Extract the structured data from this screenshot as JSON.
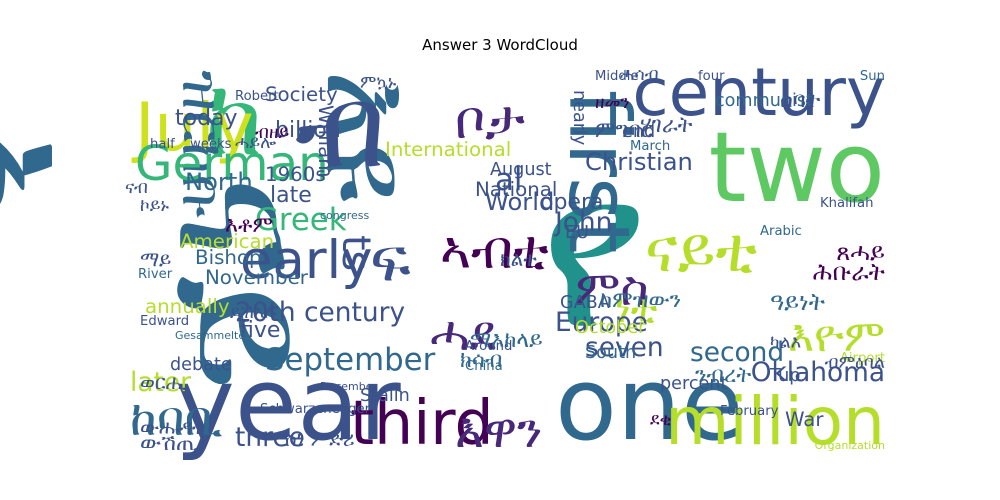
{
  "chart_data": {
    "type": "wordcloud",
    "title": "Answer 3 WordCloud",
    "words": [
      {
        "text": "የ",
        "weight": 100,
        "color": "#21918c",
        "rot": 0
      },
      {
        "text": "ኣ",
        "weight": 88,
        "color": "#31688e",
        "rot": 90
      },
      {
        "text": "ናይ",
        "weight": 86,
        "color": "#31688e",
        "rot": 90
      },
      {
        "text": "እዩ",
        "weight": 55,
        "color": "#31688e",
        "rot": 90
      },
      {
        "text": "ብ",
        "weight": 52,
        "color": "#3b528b",
        "rot": 0
      },
      {
        "text": "ከ",
        "weight": 48,
        "color": "#35b779",
        "rot": 0
      },
      {
        "text": "year",
        "weight": 46,
        "color": "#3b528b",
        "rot": 0
      },
      {
        "text": "one",
        "weight": 46,
        "color": "#31688e",
        "rot": 0
      },
      {
        "text": "two",
        "weight": 44,
        "color": "#5ec962",
        "rot": 0
      },
      {
        "text": "first",
        "weight": 38,
        "color": "#31688e",
        "rot": 90
      },
      {
        "text": "century",
        "weight": 30,
        "color": "#3b528b",
        "rot": 0
      },
      {
        "text": "million",
        "weight": 30,
        "color": "#b5de2b",
        "rot": 0
      },
      {
        "text": "July",
        "weight": 30,
        "color": "#cde11d",
        "rot": 0
      },
      {
        "text": "third",
        "weight": 28,
        "color": "#440154",
        "rot": 0
      },
      {
        "text": "ፍ",
        "weight": 28,
        "color": "#3b528b",
        "rot": 0
      },
      {
        "text": "ናይቲ",
        "weight": 28,
        "color": "#b5de2b",
        "rot": 0
      },
      {
        "text": "ዝርከቡ",
        "weight": 26,
        "color": "#31688e",
        "rot": 90
      },
      {
        "text": "early",
        "weight": 24,
        "color": "#3b528b",
        "rot": 0
      },
      {
        "text": "ቦታ",
        "weight": 24,
        "color": "#482878",
        "rot": 0
      },
      {
        "text": "ኣብቲ",
        "weight": 24,
        "color": "#440154",
        "rot": 0
      },
      {
        "text": "German",
        "weight": 22,
        "color": "#35b779",
        "rot": 0
      },
      {
        "text": "ምስ",
        "weight": 22,
        "color": "#482878",
        "rot": 0
      },
      {
        "text": "ሓደ",
        "weight": 22,
        "color": "#482878",
        "rot": 0
      },
      {
        "text": "እዋን",
        "weight": 22,
        "color": "#482878",
        "rot": 0
      },
      {
        "text": "ከባቢ",
        "weight": 22,
        "color": "#31688e",
        "rot": 0
      },
      {
        "text": "እዮም",
        "weight": 20,
        "color": "#b5de2b",
        "rot": 0
      },
      {
        "text": "ነቲ",
        "weight": 18,
        "color": "#b5de2b",
        "rot": 0
      },
      {
        "text": "Greek",
        "weight": 14,
        "color": "#35b779",
        "rot": 0
      },
      {
        "text": "September",
        "weight": 14,
        "color": "#31688e",
        "rot": 0
      },
      {
        "text": "Oklahoma",
        "weight": 12,
        "color": "#3b528b",
        "rot": 0
      },
      {
        "text": "20th century",
        "weight": 12,
        "color": "#3b528b",
        "rot": 0
      },
      {
        "text": "John",
        "weight": 12,
        "color": "#3b528b",
        "rot": 0
      },
      {
        "text": "Europe",
        "weight": 12,
        "color": "#3b528b",
        "rot": 0
      },
      {
        "text": "seven",
        "weight": 12,
        "color": "#3b528b",
        "rot": 0
      },
      {
        "text": "second",
        "weight": 12,
        "color": "#31688e",
        "rot": 0
      },
      {
        "text": "three",
        "weight": 12,
        "color": "#3b528b",
        "rot": 0
      },
      {
        "text": "later",
        "weight": 12,
        "color": "#b5de2b",
        "rot": 0
      },
      {
        "text": "Christian",
        "weight": 11,
        "color": "#3b528b",
        "rot": 0
      },
      {
        "text": "World",
        "weight": 11,
        "color": "#3b528b",
        "rot": 0
      },
      {
        "text": "North",
        "weight": 11,
        "color": "#31688e",
        "rot": 0
      },
      {
        "text": "al",
        "weight": 14,
        "color": "#3b528b",
        "rot": 0
      },
      {
        "text": "ts",
        "weight": 18,
        "color": "#3b528b",
        "rot": 90
      },
      {
        "text": "today",
        "weight": 10,
        "color": "#3b528b",
        "rot": 0
      },
      {
        "text": "billion",
        "weight": 10,
        "color": "#3b528b",
        "rot": 0
      },
      {
        "text": "Society",
        "weight": 9,
        "color": "#3b528b",
        "rot": 0
      },
      {
        "text": "William",
        "weight": 9,
        "color": "#3b528b",
        "rot": 90
      },
      {
        "text": "International",
        "weight": 9,
        "color": "#b5de2b",
        "rot": 0
      },
      {
        "text": "National",
        "weight": 9,
        "color": "#3b528b",
        "rot": 0
      },
      {
        "text": "August",
        "weight": 8,
        "color": "#3b528b",
        "rot": 0
      },
      {
        "text": "1960s",
        "weight": 9,
        "color": "#3b528b",
        "rot": 0
      },
      {
        "text": "late",
        "weight": 10,
        "color": "#3b528b",
        "rot": 0
      },
      {
        "text": "American",
        "weight": 9,
        "color": "#b5de2b",
        "rot": 0
      },
      {
        "text": "Bishop",
        "weight": 9,
        "color": "#31688e",
        "rot": 0
      },
      {
        "text": "November",
        "weight": 9,
        "color": "#31688e",
        "rot": 0
      },
      {
        "text": "annually",
        "weight": 9,
        "color": "#b5de2b",
        "rot": 0
      },
      {
        "text": "five",
        "weight": 10,
        "color": "#3b528b",
        "rot": 0
      },
      {
        "text": "debate",
        "weight": 8,
        "color": "#3b528b",
        "rot": 0
      },
      {
        "text": "Stalin",
        "weight": 8,
        "color": "#3b528b",
        "rot": 0
      },
      {
        "text": "opera",
        "weight": 10,
        "color": "#3b528b",
        "rot": 0
      },
      {
        "text": "EU",
        "weight": 8,
        "color": "#3b528b",
        "rot": 0
      },
      {
        "text": "GABA",
        "weight": 8,
        "color": "#3b528b",
        "rot": 0
      },
      {
        "text": "October",
        "weight": 8,
        "color": "#b5de2b",
        "rot": 0
      },
      {
        "text": "South",
        "weight": 8,
        "color": "#31688e",
        "rot": 0
      },
      {
        "text": "percent",
        "weight": 8,
        "color": "#3b528b",
        "rot": 0
      },
      {
        "text": "Tup",
        "weight": 8,
        "color": "#3b528b",
        "rot": 0
      },
      {
        "text": "War",
        "weight": 9,
        "color": "#3b528b",
        "rot": 0
      },
      {
        "text": "communist",
        "weight": 8,
        "color": "#31688e",
        "rot": 0
      },
      {
        "text": "end",
        "weight": 8,
        "color": "#3b528b",
        "rot": 0
      },
      {
        "text": "nearly",
        "weight": 8,
        "color": "#3b528b",
        "rot": 90
      },
      {
        "text": "Middle",
        "weight": 6,
        "color": "#3b528b",
        "rot": 0
      },
      {
        "text": "four",
        "weight": 6,
        "color": "#3b528b",
        "rot": 0
      },
      {
        "text": "Sun",
        "weight": 6,
        "color": "#31688e",
        "rot": 0
      },
      {
        "text": "March",
        "weight": 6,
        "color": "#31688e",
        "rot": 0
      },
      {
        "text": "Robert",
        "weight": 6,
        "color": "#3b528b",
        "rot": 0
      },
      {
        "text": "half",
        "weight": 6,
        "color": "#3b528b",
        "rot": 0
      },
      {
        "text": "weeks",
        "weight": 6,
        "color": "#3b528b",
        "rot": 0
      },
      {
        "text": "Khalifah",
        "weight": 6,
        "color": "#3b528b",
        "rot": 0
      },
      {
        "text": "Arabic",
        "weight": 6,
        "color": "#31688e",
        "rot": 0
      },
      {
        "text": "River",
        "weight": 6,
        "color": "#31688e",
        "rot": 0
      },
      {
        "text": "Edward",
        "weight": 6,
        "color": "#3b528b",
        "rot": 0
      },
      {
        "text": "Airport",
        "weight": 6,
        "color": "#b5de2b",
        "rot": 0
      },
      {
        "text": "February",
        "weight": 6,
        "color": "#3b528b",
        "rot": 0
      },
      {
        "text": "Schwarzenegger",
        "weight": 6,
        "color": "#3b528b",
        "rot": 0
      },
      {
        "text": "China",
        "weight": 6,
        "color": "#31688e",
        "rot": 0
      },
      {
        "text": "Around",
        "weight": 6,
        "color": "#3b528b",
        "rot": 0
      },
      {
        "text": "December",
        "weight": 5,
        "color": "#3b528b",
        "rot": 0
      },
      {
        "text": "congress",
        "weight": 5,
        "color": "#31688e",
        "rot": 0
      },
      {
        "text": "Organization",
        "weight": 5,
        "color": "#b5de2b",
        "rot": 0
      },
      {
        "text": "Gesammelte",
        "weight": 5,
        "color": "#31688e",
        "rot": 0
      },
      {
        "text": "ውሽጢ",
        "weight": 10,
        "color": "#3b528b",
        "rot": 0
      },
      {
        "text": "ብምዕባል",
        "weight": 8,
        "color": "#3b528b",
        "rot": 0
      },
      {
        "text": "ጸሓይ",
        "weight": 11,
        "color": "#440154",
        "rot": 0
      },
      {
        "text": "ሕቡራት",
        "weight": 11,
        "color": "#440154",
        "rot": 0
      },
      {
        "text": "ዓይነት",
        "weight": 11,
        "color": "#31688e",
        "rot": 0
      },
      {
        "text": "ንብረት",
        "weight": 10,
        "color": "#31688e",
        "rot": 0
      },
      {
        "text": "ማእከላይ",
        "weight": 10,
        "color": "#31688e",
        "rot": 0
      },
      {
        "text": "ክሳብ",
        "weight": 10,
        "color": "#31688e",
        "rot": 0
      },
      {
        "text": "ከምዝውን",
        "weight": 10,
        "color": "#31688e",
        "rot": 0
      },
      {
        "text": "ሓሳብ",
        "weight": 8,
        "color": "#3b528b",
        "rot": 0
      },
      {
        "text": "ናብ",
        "weight": 8,
        "color": "#3b528b",
        "rot": 0
      },
      {
        "text": "ብዘይ",
        "weight": 8,
        "color": "#440154",
        "rot": 0
      },
      {
        "text": "እቶም",
        "weight": 10,
        "color": "#440154",
        "rot": 0
      },
      {
        "text": "ዘመን",
        "weight": 8,
        "color": "#440154",
        "rot": 0
      },
      {
        "text": "ምግባር",
        "weight": 10,
        "color": "#3b528b",
        "rot": 0
      },
      {
        "text": "ሃገራት",
        "weight": 10,
        "color": "#3b528b",
        "rot": 0
      },
      {
        "text": "ሓይሎ",
        "weight": 8,
        "color": "#3b528b",
        "rot": 0
      },
      {
        "text": "ይኽእሉ",
        "weight": 8,
        "color": "#3b528b",
        "rot": 0
      },
      {
        "text": "ካልእ",
        "weight": 8,
        "color": "#3b528b",
        "rot": 0
      },
      {
        "text": "ምኳኑ",
        "weight": 8,
        "color": "#3b528b",
        "rot": 0
      },
      {
        "text": "ደቂ",
        "weight": 8,
        "color": "#440154",
        "rot": 0
      },
      {
        "text": "ሰባት",
        "weight": 10,
        "color": "#3b528b",
        "rot": 0
      },
      {
        "text": "ኮይኑ",
        "weight": 8,
        "color": "#3b528b",
        "rot": 0
      },
      {
        "text": "ማይ",
        "weight": 9,
        "color": "#3b528b",
        "rot": 0
      },
      {
        "text": "ወርሒ",
        "weight": 9,
        "color": "#3b528b",
        "rot": 0
      },
      {
        "text": "ውሑዳት",
        "weight": 9,
        "color": "#3b528b",
        "rot": 0
      },
      {
        "text": "ስነ ምድሪ",
        "weight": 9,
        "color": "#3b528b",
        "rot": 0
      },
      {
        "text": "ክልተ",
        "weight": 9,
        "color": "#3b528b",
        "rot": 0
      }
    ]
  }
}
